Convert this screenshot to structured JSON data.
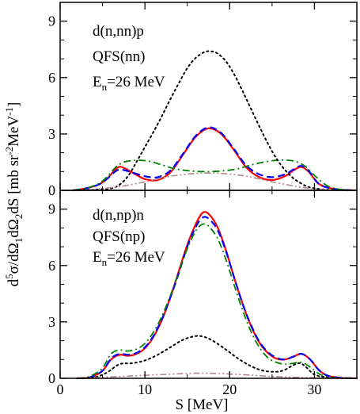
{
  "chart_data": [
    {
      "type": "line",
      "annotations": [
        "d(n,nn)p",
        "QFS(nn)",
        "E",
        "n",
        "=26 MeV"
      ],
      "xlim": [
        0,
        35
      ],
      "ylim": [
        0,
        10
      ],
      "yticks": [
        0,
        3,
        6,
        9
      ],
      "ytick_labels": [
        "0",
        "3",
        "6",
        "9"
      ],
      "xticks": [
        0,
        10,
        20,
        30
      ],
      "grid": false,
      "series": [
        {
          "style": "solid",
          "color": "#ff0000",
          "x": [
            1.5,
            3,
            4.5,
            5.5,
            6.5,
            7.2,
            8.5,
            10,
            11.5,
            13,
            14.5,
            16,
            17.5,
            19,
            20.5,
            22,
            23.5,
            25,
            26.5,
            27.5,
            28.4,
            29.3,
            30.5,
            32,
            33.5,
            35
          ],
          "y": [
            0,
            0.1,
            0.3,
            0.6,
            1.1,
            1.25,
            0.95,
            0.6,
            0.55,
            0.95,
            1.9,
            2.85,
            3.3,
            3.0,
            2.15,
            1.2,
            0.7,
            0.55,
            0.75,
            1.05,
            1.25,
            1.0,
            0.35,
            0.1,
            0.02,
            0
          ]
        },
        {
          "style": "dashed",
          "color": "#0000ff",
          "x": [
            1.5,
            3,
            4.5,
            5.5,
            6.5,
            7.2,
            8.5,
            10,
            11.5,
            13,
            14.5,
            16,
            17.5,
            19,
            20.5,
            22,
            23.5,
            25,
            26.5,
            27.5,
            28.4,
            29.3,
            30.5,
            32,
            33.5,
            35
          ],
          "y": [
            0,
            0.1,
            0.3,
            0.6,
            1.0,
            1.1,
            0.95,
            0.75,
            0.7,
            1.05,
            1.95,
            2.9,
            3.35,
            3.05,
            2.2,
            1.3,
            0.85,
            0.7,
            0.85,
            1.1,
            1.3,
            1.05,
            0.35,
            0.1,
            0.02,
            0
          ]
        },
        {
          "style": "dash-dot",
          "color": "#008000",
          "x": [
            1.5,
            3,
            4.5,
            5.5,
            6.5,
            7.5,
            9,
            10.5,
            12,
            13.5,
            15,
            16.5,
            18,
            19.5,
            21,
            22.5,
            24,
            25.5,
            27,
            28,
            29,
            30,
            31.5,
            33,
            35
          ],
          "y": [
            0,
            0.1,
            0.35,
            0.7,
            1.2,
            1.5,
            1.6,
            1.55,
            1.35,
            1.15,
            1.05,
            1.0,
            1.0,
            1.05,
            1.15,
            1.35,
            1.5,
            1.6,
            1.6,
            1.5,
            1.25,
            0.8,
            0.25,
            0.05,
            0
          ]
        },
        {
          "style": "dotted",
          "color": "#000000",
          "x": [
            1.5,
            3,
            4.5,
            6,
            7,
            8,
            9,
            10,
            11,
            12,
            13,
            14,
            15,
            16,
            17,
            17.7,
            18.5,
            19.5,
            20.5,
            21.5,
            22.5,
            23.5,
            24.5,
            25.5,
            26.5,
            27.5,
            28.5,
            29.5,
            31,
            33,
            35
          ],
          "y": [
            0,
            0.02,
            0.05,
            0.1,
            0.3,
            0.75,
            1.5,
            2.3,
            3.1,
            3.95,
            4.85,
            5.7,
            6.5,
            7.05,
            7.35,
            7.4,
            7.3,
            6.9,
            6.2,
            5.3,
            4.35,
            3.4,
            2.5,
            1.7,
            1.1,
            0.65,
            0.35,
            0.15,
            0.05,
            0.01,
            0
          ]
        },
        {
          "style": "dash-dot-dot",
          "color": "#b08a8a",
          "x": [
            1.5,
            4,
            7,
            10,
            13,
            16,
            17.5,
            19,
            22,
            25,
            28,
            30,
            32,
            35
          ],
          "y": [
            0,
            0.05,
            0.2,
            0.45,
            0.75,
            0.9,
            0.92,
            0.9,
            0.75,
            0.45,
            0.2,
            0.08,
            0.02,
            0
          ]
        }
      ]
    },
    {
      "type": "line",
      "annotations": [
        "d(n,np)n",
        "QFS(np)",
        "E",
        "n",
        "=26 MeV"
      ],
      "xlabel": "S [MeV]",
      "ylabel_parts": [
        "d",
        "5",
        "σ/dΩ",
        "1",
        "dΩ",
        "2",
        "dS [mb sr",
        "-2",
        "MeV",
        "-1",
        "]"
      ],
      "xlim": [
        0,
        35
      ],
      "ylim": [
        0,
        10
      ],
      "yticks": [
        0,
        3,
        6,
        9
      ],
      "ytick_labels": [
        "0",
        "3",
        "6",
        "9"
      ],
      "xticks": [
        0,
        10,
        20,
        30
      ],
      "xtick_labels": [
        "0",
        "10",
        "20",
        "30"
      ],
      "grid": false,
      "series": [
        {
          "style": "solid",
          "color": "#ff0000",
          "x": [
            2,
            3.5,
            5,
            6,
            7,
            8,
            9,
            10,
            11,
            12,
            13,
            14,
            15,
            16,
            16.8,
            17.5,
            18.5,
            19.5,
            20.5,
            21.5,
            22.5,
            23.5,
            24.5,
            25.5,
            26.5,
            27.5,
            28.5,
            29.5,
            30.5,
            31.5,
            33,
            35
          ],
          "y": [
            0,
            0.05,
            0.4,
            1.0,
            1.25,
            1.2,
            1.3,
            1.6,
            2.2,
            3.1,
            4.3,
            5.7,
            7.1,
            8.2,
            8.8,
            8.75,
            8.1,
            6.9,
            5.4,
            4.0,
            2.8,
            1.9,
            1.35,
            1.05,
            1.0,
            1.15,
            1.3,
            1.0,
            0.45,
            0.15,
            0.03,
            0
          ]
        },
        {
          "style": "dashed",
          "color": "#0000ff",
          "x": [
            2,
            3.5,
            5,
            6,
            7,
            8,
            9,
            10,
            11,
            12,
            13,
            14,
            15,
            16,
            16.8,
            17.5,
            18.5,
            19.5,
            20.5,
            21.5,
            22.5,
            23.5,
            24.5,
            25.5,
            26.5,
            27.5,
            28.5,
            29.5,
            30.5,
            31.5,
            33,
            35
          ],
          "y": [
            0,
            0.05,
            0.4,
            1.05,
            1.3,
            1.25,
            1.35,
            1.65,
            2.25,
            3.15,
            4.3,
            5.6,
            7.0,
            8.05,
            8.55,
            8.5,
            7.95,
            6.85,
            5.4,
            4.0,
            2.85,
            1.95,
            1.4,
            1.1,
            1.0,
            1.15,
            1.3,
            1.0,
            0.45,
            0.15,
            0.03,
            0
          ]
        },
        {
          "style": "dash-dot",
          "color": "#008000",
          "x": [
            2,
            3.5,
            5,
            6,
            7,
            8,
            9,
            10,
            11,
            12,
            13,
            14,
            15,
            16,
            16.8,
            17.5,
            18.5,
            19.5,
            20.5,
            21.5,
            22.5,
            23.5,
            24.5,
            25.5,
            26.5,
            27.5,
            28.5,
            29.5,
            30.5,
            31.5,
            33,
            35
          ],
          "y": [
            0,
            0.1,
            0.55,
            1.3,
            1.5,
            1.45,
            1.55,
            1.85,
            2.45,
            3.3,
            4.4,
            5.65,
            6.9,
            7.85,
            8.2,
            8.1,
            7.5,
            6.4,
            5.0,
            3.65,
            2.5,
            1.65,
            1.1,
            0.85,
            0.75,
            0.8,
            0.85,
            0.6,
            0.25,
            0.08,
            0.02,
            0
          ]
        },
        {
          "style": "dotted",
          "color": "#000000",
          "x": [
            2,
            4,
            5.5,
            7,
            8.5,
            10,
            11.5,
            13,
            14.5,
            16,
            17,
            18,
            19.5,
            21,
            22.5,
            24,
            25.5,
            26.5,
            27.5,
            28.3,
            29,
            30,
            31.5,
            33,
            35
          ],
          "y": [
            0,
            0.05,
            0.3,
            0.75,
            0.8,
            0.95,
            1.25,
            1.65,
            2.05,
            2.25,
            2.2,
            2.0,
            1.55,
            1.05,
            0.65,
            0.4,
            0.35,
            0.45,
            0.7,
            0.8,
            0.6,
            0.2,
            0.05,
            0.01,
            0
          ]
        },
        {
          "style": "dash-dot-dot",
          "color": "#b08a8a",
          "x": [
            2,
            5,
            8,
            11,
            14,
            16,
            17.5,
            19,
            22,
            25,
            28,
            31,
            35
          ],
          "y": [
            0,
            0.05,
            0.12,
            0.18,
            0.24,
            0.27,
            0.27,
            0.25,
            0.18,
            0.1,
            0.05,
            0.02,
            0
          ]
        }
      ]
    }
  ]
}
